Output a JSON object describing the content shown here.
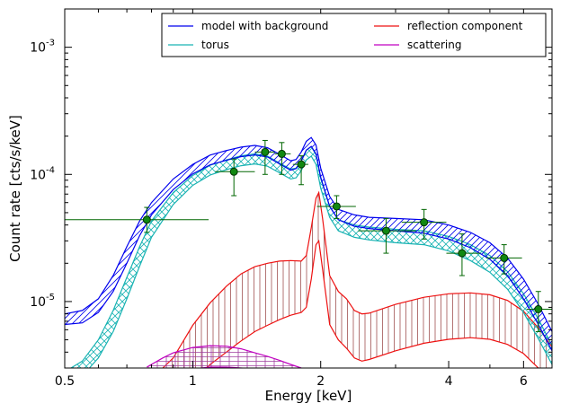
{
  "chart_data": {
    "type": "line",
    "xlabel": "Energy [keV]",
    "ylabel": "Count rate [cts/s/keV]",
    "x_scale": "log",
    "y_scale": "log",
    "xlim": [
      0.5,
      7.0
    ],
    "ylim": [
      3e-06,
      0.002
    ],
    "x_ticks": [
      {
        "value": 0.5,
        "label": "0.5"
      },
      {
        "value": 1,
        "label": "1"
      },
      {
        "value": 2,
        "label": "2"
      },
      {
        "value": 4,
        "label": "4"
      },
      {
        "value": 6,
        "label": "6"
      }
    ],
    "y_ticks": [
      {
        "value": 1e-05,
        "mantissa": "10",
        "exponent": "-5"
      },
      {
        "value": 0.0001,
        "mantissa": "10",
        "exponent": "-4"
      },
      {
        "value": 0.001,
        "mantissa": "10",
        "exponent": "-3"
      }
    ],
    "legend": {
      "placement": "top-right",
      "entries": [
        {
          "name": "model with background",
          "color": "#0000ee"
        },
        {
          "name": "reflection component",
          "color": "#ee1111"
        },
        {
          "name": "torus",
          "color": "#19b3b3"
        },
        {
          "name": "scattering",
          "color": "#c000c0"
        }
      ]
    },
    "series": [
      {
        "name": "model with background",
        "color": "#0000ee",
        "x": [
          0.5,
          0.55,
          0.6,
          0.65,
          0.7,
          0.75,
          0.8,
          0.9,
          1.0,
          1.1,
          1.2,
          1.3,
          1.4,
          1.5,
          1.6,
          1.7,
          1.75,
          1.8,
          1.85,
          1.9,
          1.95,
          2.0,
          2.1,
          2.2,
          2.4,
          2.6,
          3.0,
          3.5,
          4.0,
          4.5,
          5.0,
          5.5,
          6.0,
          6.5,
          7.0
        ],
        "upper": [
          8e-06,
          8.5e-06,
          1.05e-05,
          1.6e-05,
          2.7e-05,
          4.3e-05,
          6e-05,
          9.2e-05,
          0.00012,
          0.000142,
          0.000154,
          0.000164,
          0.000169,
          0.000162,
          0.000144,
          0.000128,
          0.000131,
          0.00015,
          0.000182,
          0.000195,
          0.00017,
          0.000112,
          6.7e-05,
          5.3e-05,
          4.8e-05,
          4.6e-05,
          4.5e-05,
          4.4e-05,
          4e-05,
          3.5e-05,
          2.9e-05,
          2.2e-05,
          1.5e-05,
          9.5e-06,
          5.8e-06
        ],
        "lower": [
          6.6e-06,
          6.8e-06,
          8.2e-06,
          1.2e-05,
          2e-05,
          3.3e-05,
          4.8e-05,
          7.6e-05,
          0.000101,
          0.000119,
          0.000129,
          0.000138,
          0.000142,
          0.000137,
          0.000121,
          0.000108,
          0.000111,
          0.000127,
          0.000155,
          0.000166,
          0.000145,
          9.5e-05,
          5.6e-05,
          4.4e-05,
          3.9e-05,
          3.75e-05,
          3.6e-05,
          3.45e-05,
          3.1e-05,
          2.65e-05,
          2.15e-05,
          1.6e-05,
          1.05e-05,
          6.6e-06,
          4.1e-06
        ]
      },
      {
        "name": "torus",
        "color": "#19b3b3",
        "x": [
          0.5,
          0.55,
          0.6,
          0.65,
          0.7,
          0.75,
          0.8,
          0.9,
          1.0,
          1.1,
          1.2,
          1.3,
          1.4,
          1.5,
          1.6,
          1.7,
          1.75,
          1.8,
          1.85,
          1.9,
          1.95,
          2.0,
          2.1,
          2.2,
          2.4,
          2.6,
          3.0,
          3.5,
          4.0,
          4.5,
          5.0,
          5.5,
          6.0,
          6.5,
          7.0
        ],
        "upper": [
          2.8e-06,
          3.4e-06,
          5e-06,
          8.5e-06,
          1.55e-05,
          2.7e-05,
          4.3e-05,
          7.2e-05,
          9.8e-05,
          0.000118,
          0.00013,
          0.00014,
          0.000145,
          0.000139,
          0.000123,
          0.00011,
          0.000112,
          0.000128,
          0.000155,
          0.000165,
          0.000143,
          9.3e-05,
          5.6e-05,
          4.4e-05,
          4e-05,
          3.85e-05,
          3.7e-05,
          3.6e-05,
          3.25e-05,
          2.8e-05,
          2.3e-05,
          1.72e-05,
          1.15e-05,
          7.3e-06,
          4.5e-06
        ],
        "lower": [
          2.2e-06,
          2.6e-06,
          3.6e-06,
          5.8e-06,
          1.05e-05,
          1.9e-05,
          3.2e-05,
          5.8e-05,
          8.2e-05,
          9.9e-05,
          0.000109,
          0.000117,
          0.000121,
          0.000116,
          0.000103,
          9.2e-05,
          9.4e-05,
          0.000107,
          0.00013,
          0.000139,
          0.00012,
          7.8e-05,
          4.6e-05,
          3.6e-05,
          3.2e-05,
          3.05e-05,
          2.9e-05,
          2.8e-05,
          2.5e-05,
          2.1e-05,
          1.7e-05,
          1.25e-05,
          8.2e-06,
          5.1e-06,
          3.2e-06
        ]
      },
      {
        "name": "reflection component",
        "color": "#ee1111",
        "x": [
          0.85,
          0.9,
          1.0,
          1.1,
          1.2,
          1.3,
          1.4,
          1.5,
          1.6,
          1.7,
          1.8,
          1.85,
          1.9,
          1.95,
          1.98,
          2.02,
          2.1,
          2.2,
          2.3,
          2.4,
          2.5,
          2.6,
          3.0,
          3.5,
          4.0,
          4.5,
          5.0,
          5.5,
          6.0,
          6.5,
          7.0
        ],
        "upper": [
          3e-06,
          3.6e-06,
          6.5e-06,
          9.8e-06,
          1.32e-05,
          1.65e-05,
          1.88e-05,
          2e-05,
          2.08e-05,
          2.1e-05,
          2.08e-05,
          2.3e-05,
          3.8e-05,
          6.5e-05,
          7.2e-05,
          4.5e-05,
          1.6e-05,
          1.2e-05,
          1.05e-05,
          8.5e-06,
          8e-06,
          8.1e-06,
          9.5e-06,
          1.08e-05,
          1.15e-05,
          1.17e-05,
          1.13e-05,
          1.02e-05,
          8.4e-06,
          6.2e-06,
          4.4e-06
        ],
        "lower": [
          1.5e-06,
          1.7e-06,
          2.4e-06,
          3.2e-06,
          4e-06,
          4.9e-06,
          5.8e-06,
          6.5e-06,
          7.2e-06,
          7.8e-06,
          8.2e-06,
          9e-06,
          1.5e-05,
          2.8e-05,
          3e-05,
          1.8e-05,
          6.6e-06,
          5e-06,
          4.3e-06,
          3.6e-06,
          3.4e-06,
          3.5e-06,
          4.1e-06,
          4.7e-06,
          5.05e-06,
          5.2e-06,
          5.05e-06,
          4.6e-06,
          3.9e-06,
          3e-06,
          2.2e-06
        ]
      },
      {
        "name": "scattering",
        "color": "#c000c0",
        "x": [
          0.78,
          0.85,
          0.9,
          1.0,
          1.1,
          1.2,
          1.3,
          1.4,
          1.5,
          1.6,
          1.7,
          1.8
        ],
        "upper": [
          3.05e-06,
          3.6e-06,
          3.95e-06,
          4.35e-06,
          4.5e-06,
          4.45e-06,
          4.25e-06,
          3.95e-06,
          3.7e-06,
          3.45e-06,
          3.2e-06,
          3e-06
        ],
        "lower": [
          2e-06,
          2.4e-06,
          2.65e-06,
          2.95e-06,
          3.05e-06,
          3.05e-06,
          3e-06,
          2.95e-06,
          2.85e-06,
          2.75e-06,
          2.6e-06,
          2.4e-06
        ]
      }
    ],
    "data_points": {
      "color": "#006600",
      "marker_fill": "#118811",
      "points": [
        {
          "x": 0.78,
          "xlo": 0.5,
          "xhi": 1.09,
          "y": 4.4e-05,
          "ylo": 3.5e-05,
          "yhi": 5.5e-05
        },
        {
          "x": 1.25,
          "xlo": 1.13,
          "xhi": 1.4,
          "y": 0.000105,
          "ylo": 6.8e-05,
          "yhi": 0.000132
        },
        {
          "x": 1.48,
          "xlo": 1.4,
          "xhi": 1.56,
          "y": 0.00015,
          "ylo": 0.0001,
          "yhi": 0.000185
        },
        {
          "x": 1.62,
          "xlo": 1.56,
          "xhi": 1.7,
          "y": 0.000145,
          "ylo": 0.0001,
          "yhi": 0.000178
        },
        {
          "x": 1.8,
          "xlo": 1.72,
          "xhi": 1.87,
          "y": 0.00012,
          "ylo": 8.3e-05,
          "yhi": 0.00014
        },
        {
          "x": 2.18,
          "xlo": 1.96,
          "xhi": 2.42,
          "y": 5.6e-05,
          "ylo": 4.5e-05,
          "yhi": 6.8e-05
        },
        {
          "x": 2.85,
          "xlo": 2.45,
          "xhi": 3.35,
          "y": 3.6e-05,
          "ylo": 2.4e-05,
          "yhi": 4.5e-05
        },
        {
          "x": 3.5,
          "xlo": 3.1,
          "xhi": 3.95,
          "y": 4.2e-05,
          "ylo": 3.1e-05,
          "yhi": 5.3e-05
        },
        {
          "x": 4.3,
          "xlo": 3.95,
          "xhi": 4.75,
          "y": 2.4e-05,
          "ylo": 1.6e-05,
          "yhi": 3.4e-05
        },
        {
          "x": 5.4,
          "xlo": 4.9,
          "xhi": 5.95,
          "y": 2.2e-05,
          "ylo": 1.65e-05,
          "yhi": 2.8e-05
        },
        {
          "x": 6.5,
          "xlo": 6.1,
          "xhi": 7.0,
          "y": 8.7e-06,
          "ylo": 5.8e-06,
          "yhi": 1.2e-05
        }
      ]
    }
  }
}
